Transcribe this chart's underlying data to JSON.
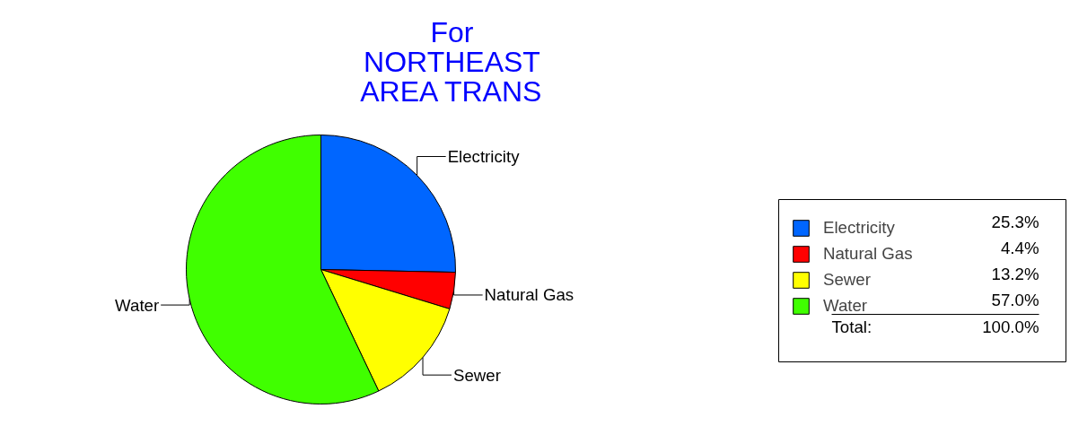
{
  "chart_data": {
    "type": "pie",
    "title": "For\nNORTHEAST\nAREA TRANS",
    "categories": [
      "Electricity",
      "Natural Gas",
      "Sewer",
      "Water"
    ],
    "values": [
      25.3,
      4.4,
      13.2,
      57.0
    ],
    "colors": [
      "#0066ff",
      "#ff0000",
      "#ffff00",
      "#40ff00"
    ],
    "value_labels": [
      "25.3%",
      "4.4%",
      "13.2%",
      "57.0%"
    ],
    "legend": "right",
    "annotations": [
      "Total:",
      "100.0%"
    ]
  }
}
